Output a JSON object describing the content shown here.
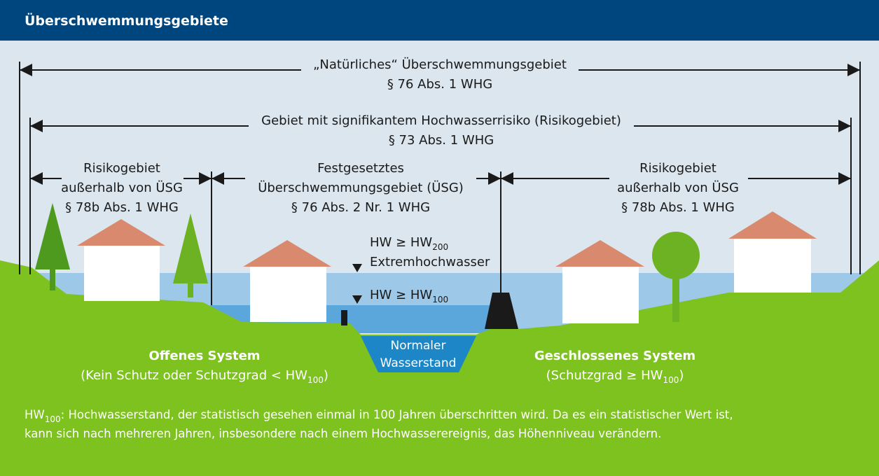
{
  "header": {
    "title": "Überschwemmungsgebiete"
  },
  "spans": [
    {
      "lines": [
        "„Natürliches“ Überschwemmungsgebiet",
        "§ 76 Abs. 1 WHG"
      ]
    },
    {
      "lines": [
        "Gebiet mit signifikantem Hochwasserrisiko (Risikogebiet)",
        "§ 73 Abs. 1 WHG"
      ]
    },
    {
      "lines": [
        "Risikogebiet",
        "außerhalb von ÜSG",
        "§ 78b Abs. 1 WHG"
      ]
    },
    {
      "lines": [
        "Festgesetztes",
        "Überschwemmungsgebiet (ÜSG)",
        "§ 76 Abs. 2 Nr. 1 WHG"
      ]
    },
    {
      "lines": [
        "Risikogebiet",
        "außerhalb von ÜSG",
        "§ 78b Abs. 1 WHG"
      ]
    }
  ],
  "levels": {
    "extreme": {
      "text": "HW ≥ HW",
      "sub": "200",
      "name": "Extremhochwasser"
    },
    "hw100": {
      "text": "HW ≥ HW",
      "sub": "100"
    }
  },
  "normal_water": [
    "Normaler",
    "Wasserstand"
  ],
  "systems": [
    {
      "title": "Offenes System",
      "note": "(Kein Schutz oder Schutzgrad < HW",
      "sub": "100",
      "end": ")"
    },
    {
      "title": "Geschlossenes System",
      "note": "(Schutzgrad ≥ HW",
      "sub": "100",
      "end": ")"
    }
  ],
  "footnote": {
    "term": "HW",
    "sub": "100",
    "line1": ": Hochwasserstand, der statistisch gesehen einmal in 100 Jahren überschritten wird. Da es ein statistischer Wert ist,",
    "line2": "kann sich nach mehreren Jahren, insbesondere nach einem Hochwasserereignis, das Höhenniveau verändern."
  }
}
